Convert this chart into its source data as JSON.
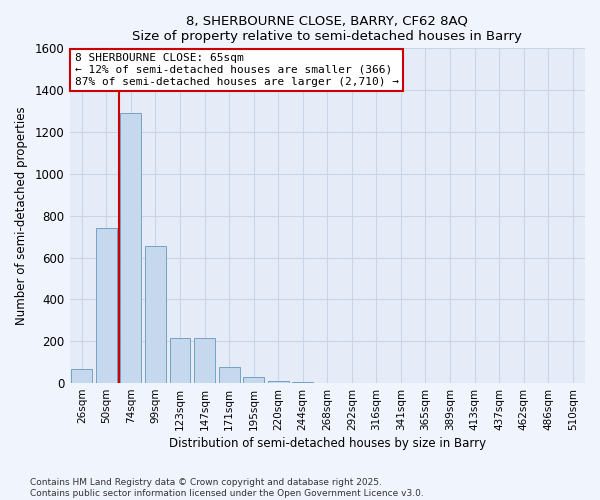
{
  "title1": "8, SHERBOURNE CLOSE, BARRY, CF62 8AQ",
  "title2": "Size of property relative to semi-detached houses in Barry",
  "xlabel": "Distribution of semi-detached houses by size in Barry",
  "ylabel": "Number of semi-detached properties",
  "categories": [
    "26sqm",
    "50sqm",
    "74sqm",
    "99sqm",
    "123sqm",
    "147sqm",
    "171sqm",
    "195sqm",
    "220sqm",
    "244sqm",
    "268sqm",
    "292sqm",
    "316sqm",
    "341sqm",
    "365sqm",
    "389sqm",
    "413sqm",
    "437sqm",
    "462sqm",
    "486sqm",
    "510sqm"
  ],
  "values": [
    65,
    740,
    1290,
    655,
    215,
    215,
    75,
    30,
    10,
    3,
    1,
    0,
    0,
    0,
    0,
    0,
    0,
    0,
    0,
    0,
    0
  ],
  "bar_color": "#c5d8ee",
  "bar_edge_color": "#6699bb",
  "vline_x_idx": 1.5,
  "vline_color": "#cc0000",
  "annotation_text": "8 SHERBOURNE CLOSE: 65sqm\n← 12% of semi-detached houses are smaller (366)\n87% of semi-detached houses are larger (2,710) →",
  "annotation_box_color": "white",
  "annotation_box_edge": "#cc0000",
  "ylim": [
    0,
    1600
  ],
  "yticks": [
    0,
    200,
    400,
    600,
    800,
    1000,
    1200,
    1400,
    1600
  ],
  "footer1": "Contains HM Land Registry data © Crown copyright and database right 2025.",
  "footer2": "Contains public sector information licensed under the Open Government Licence v3.0.",
  "bg_color": "#f0f4fc",
  "plot_bg_color": "#e6ecf7",
  "grid_color": "#c8d4e8"
}
